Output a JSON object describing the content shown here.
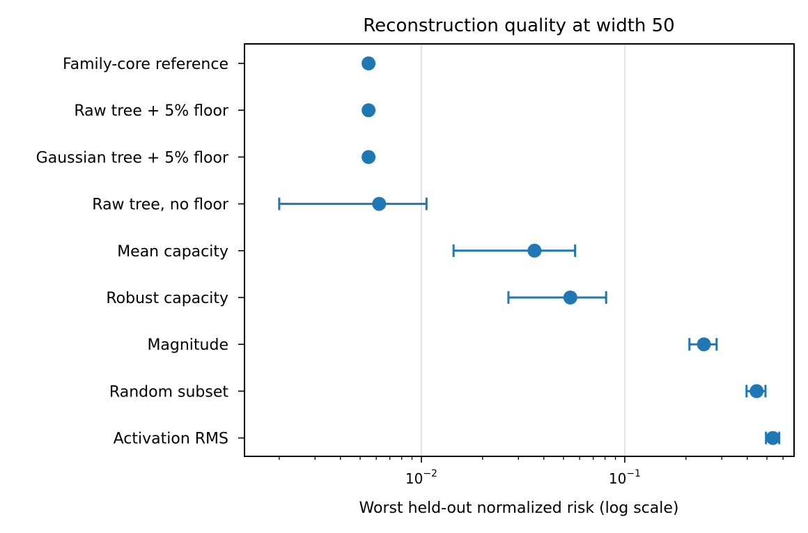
{
  "chart_data": {
    "type": "scatter",
    "title": "Reconstruction quality at width 50",
    "xlabel": "Worst held-out normalized risk (log scale)",
    "ylabel": "",
    "xscale": "log",
    "xlim": [
      0.00135,
      0.68
    ],
    "grid": "vertical major gridlines",
    "marker_color": "#1f77b4",
    "x_ticks": [
      {
        "value": 0.01,
        "base": "10",
        "exp": "−2"
      },
      {
        "value": 0.1,
        "base": "10",
        "exp": "−1"
      }
    ],
    "categories": [
      "Family-core reference",
      "Raw tree + 5% floor",
      "Gaussian tree + 5% floor",
      "Raw tree, no floor",
      "Mean capacity",
      "Robust capacity",
      "Magnitude",
      "Random subset",
      "Activation RMS"
    ],
    "points": [
      {
        "value": 0.0055,
        "err_low": null,
        "err_high": null
      },
      {
        "value": 0.0055,
        "err_low": null,
        "err_high": null
      },
      {
        "value": 0.0055,
        "err_low": null,
        "err_high": null
      },
      {
        "value": 0.0062,
        "err_low": 0.002,
        "err_high": 0.0106
      },
      {
        "value": 0.036,
        "err_low": 0.0144,
        "err_high": 0.057
      },
      {
        "value": 0.054,
        "err_low": 0.0268,
        "err_high": 0.081
      },
      {
        "value": 0.245,
        "err_low": 0.208,
        "err_high": 0.283
      },
      {
        "value": 0.445,
        "err_low": 0.397,
        "err_high": 0.492
      },
      {
        "value": 0.535,
        "err_low": 0.495,
        "err_high": 0.575
      }
    ]
  }
}
